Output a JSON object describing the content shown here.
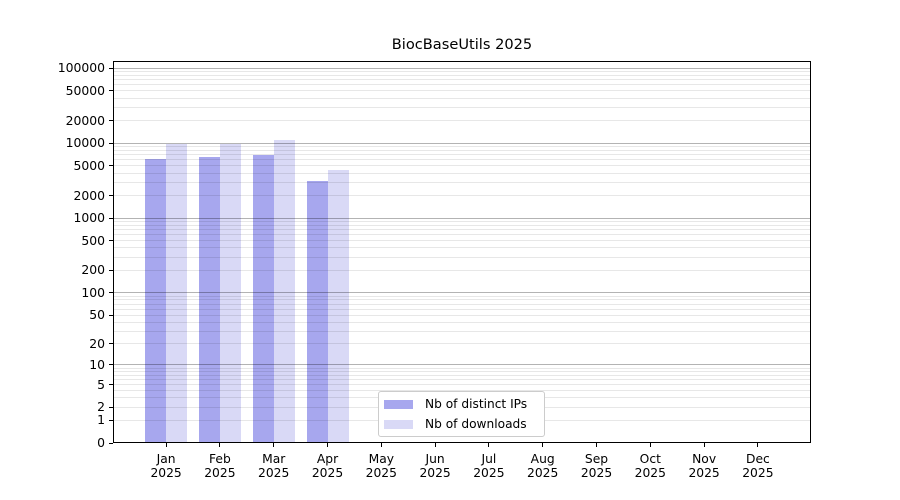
{
  "chart_data": {
    "type": "bar",
    "title": "BiocBaseUtils 2025",
    "categories": [
      "Jan",
      "Feb",
      "Mar",
      "Apr",
      "May",
      "Jun",
      "Jul",
      "Aug",
      "Sep",
      "Oct",
      "Nov",
      "Dec"
    ],
    "x_year_label": "2025",
    "series": [
      {
        "name": "Nb of distinct IPs",
        "color": "#a7a7ee",
        "values": [
          6200,
          6500,
          7000,
          3150,
          null,
          null,
          null,
          null,
          null,
          null,
          null,
          null
        ]
      },
      {
        "name": "Nb of downloads",
        "color": "#d9d9f6",
        "values": [
          9700,
          9850,
          11000,
          4400,
          null,
          null,
          null,
          null,
          null,
          null,
          null,
          null
        ]
      }
    ],
    "yscale": "log1p",
    "ylim": [
      0,
      100000
    ],
    "ytick_values": [
      0,
      1,
      2,
      5,
      10,
      20,
      50,
      100,
      200,
      500,
      1000,
      2000,
      5000,
      10000,
      20000,
      50000,
      100000
    ],
    "grid": true,
    "legend_position": "lower-center-inside"
  },
  "colors": {
    "figure_background": "#ffffff",
    "bar_distinct_ips": "#a7a7ee",
    "bar_downloads": "#d9d9f6",
    "grid_major": "#b3b3b3",
    "grid_minor": "#e7e7e7",
    "spine": "#000000",
    "text": "#000000",
    "legend_border": "#cccccc",
    "legend_background": "#ffffff"
  },
  "legend": {
    "items": [
      {
        "label": "Nb of distinct IPs"
      },
      {
        "label": "Nb of downloads"
      }
    ]
  }
}
